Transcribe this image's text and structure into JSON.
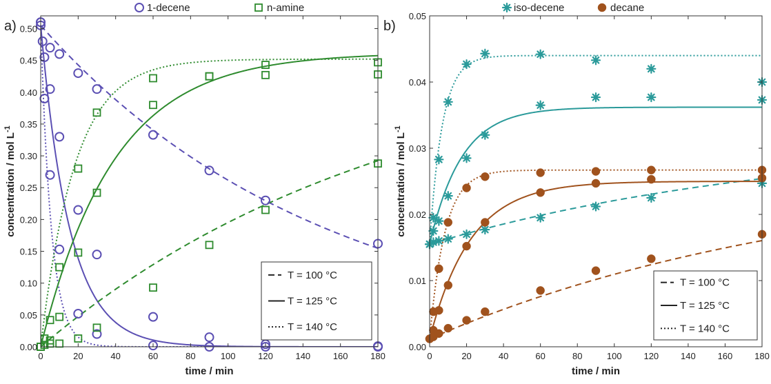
{
  "chart_data": [
    {
      "panel_label": "a)",
      "type": "scatter+line",
      "xlabel": "time / min",
      "ylabel": "concentration / mol L",
      "ylabel_sup": "-1",
      "xlim": [
        0,
        180
      ],
      "ylim": [
        0,
        0.52
      ],
      "xticks": [
        0,
        20,
        40,
        60,
        80,
        100,
        120,
        140,
        160,
        180
      ],
      "xtick_labels": [
        "0",
        "20",
        "40",
        "60",
        "80",
        "100",
        "120",
        "140",
        "160",
        "180"
      ],
      "yticks": [
        0,
        0.05,
        0.1,
        0.15,
        0.2,
        0.25,
        0.3,
        0.35,
        0.4,
        0.45,
        0.5
      ],
      "ytick_labels": [
        "0.00",
        "0.05",
        "0.10",
        "0.15",
        "0.20",
        "0.25",
        "0.30",
        "0.35",
        "0.40",
        "0.45",
        "0.50"
      ],
      "grid": false,
      "legend_top": [
        {
          "label": "1-decene",
          "marker": "circle-open",
          "color": "#5b4fb3"
        },
        {
          "label": "n-amine",
          "marker": "square-open",
          "color": "#2e8b2e"
        }
      ],
      "legend_lines": [
        {
          "label": "T = 100 °C",
          "prefix": "- -",
          "style": "dashed"
        },
        {
          "label": "T = 125 °C",
          "prefix": "",
          "style": "solid"
        },
        {
          "label": "T = 140 °C",
          "prefix": "",
          "style": "dotted"
        }
      ],
      "legend_lines_position": "bottom-right",
      "series": [
        {
          "name": "1-decene",
          "temperature": "T = 100 °C",
          "marker": "circle-open",
          "color": "#5b4fb3",
          "x": [
            0,
            5,
            10,
            20,
            30,
            60,
            90,
            120,
            180
          ],
          "y": [
            0.51,
            0.47,
            0.46,
            0.43,
            0.405,
            0.333,
            0.277,
            0.23,
            0.162
          ]
        },
        {
          "name": "1-decene",
          "temperature": "T = 125 °C",
          "marker": "circle-open",
          "color": "#5b4fb3",
          "x": [
            0,
            2,
            5,
            10,
            20,
            30,
            60,
            90,
            120,
            180
          ],
          "y": [
            0.505,
            0.455,
            0.405,
            0.33,
            0.215,
            0.145,
            0.047,
            0.015,
            0.004,
            0.001
          ]
        },
        {
          "name": "1-decene",
          "temperature": "T = 140 °C",
          "marker": "circle-open",
          "color": "#5b4fb3",
          "x": [
            0,
            1,
            2,
            5,
            10,
            20,
            30,
            60,
            90,
            120,
            180
          ],
          "y": [
            0.51,
            0.48,
            0.39,
            0.27,
            0.153,
            0.052,
            0.02,
            0.002,
            0.0,
            0.0,
            0.0
          ]
        },
        {
          "name": "n-amine",
          "temperature": "T = 100 °C",
          "marker": "square-open",
          "color": "#2e8b2e",
          "x": [
            0,
            5,
            10,
            20,
            30,
            60,
            90,
            120,
            180
          ],
          "y": [
            0.0,
            0.005,
            0.005,
            0.013,
            0.03,
            0.093,
            0.16,
            0.215,
            0.288
          ]
        },
        {
          "name": "n-amine",
          "temperature": "T = 125 °C",
          "marker": "square-open",
          "color": "#2e8b2e",
          "x": [
            0,
            2,
            5,
            10,
            20,
            30,
            60,
            90,
            120,
            180
          ],
          "y": [
            0.0,
            0.003,
            0.01,
            0.047,
            0.148,
            0.242,
            0.38,
            0.425,
            0.443,
            0.447
          ]
        },
        {
          "name": "n-amine",
          "temperature": "T = 140 °C",
          "marker": "square-open",
          "color": "#2e8b2e",
          "x": [
            0,
            2,
            5,
            10,
            20,
            30,
            60,
            90,
            120,
            180
          ],
          "y": [
            0.0,
            0.013,
            0.042,
            0.125,
            0.28,
            0.368,
            0.422,
            0.425,
            0.427,
            0.428
          ]
        }
      ],
      "fit_curves": [
        {
          "name": "1-decene",
          "temperature": "T = 100 °C",
          "style": "dashed",
          "color": "#5b4fb3",
          "kind": "exp_decay",
          "c0": 0.505,
          "k": 0.00657
        },
        {
          "name": "1-decene",
          "temperature": "T = 125 °C",
          "style": "solid",
          "color": "#5b4fb3",
          "kind": "exp_decay",
          "c0": 0.505,
          "k": 0.0645
        },
        {
          "name": "1-decene",
          "temperature": "T = 140 °C",
          "style": "dotted",
          "color": "#5b4fb3",
          "kind": "exp_decay",
          "c0": 0.505,
          "k": 0.175
        },
        {
          "name": "n-amine",
          "temperature": "T = 100 °C",
          "style": "dashed",
          "color": "#2e8b2e",
          "kind": "exp_rise",
          "a": 0.48,
          "k": 0.00522
        },
        {
          "name": "n-amine",
          "temperature": "T = 125 °C",
          "style": "solid",
          "color": "#2e8b2e",
          "kind": "exp_rise",
          "a": 0.462,
          "k": 0.0257
        },
        {
          "name": "n-amine",
          "temperature": "T = 140 °C",
          "style": "dotted",
          "color": "#2e8b2e",
          "kind": "exp_rise",
          "a": 0.452,
          "k": 0.0548
        }
      ]
    },
    {
      "panel_label": "b)",
      "type": "scatter+line",
      "xlabel": "time / min",
      "ylabel": "concentration / mol L",
      "ylabel_sup": "-1",
      "xlim": [
        0,
        180
      ],
      "ylim": [
        0,
        0.05
      ],
      "xticks": [
        0,
        20,
        40,
        60,
        80,
        100,
        120,
        140,
        160,
        180
      ],
      "xtick_labels": [
        "0",
        "20",
        "40",
        "60",
        "80",
        "100",
        "120",
        "140",
        "160",
        "180"
      ],
      "yticks": [
        0,
        0.01,
        0.02,
        0.03,
        0.04,
        0.05
      ],
      "ytick_labels": [
        "0.00",
        "0.01",
        "0.02",
        "0.03",
        "0.04",
        "0.05"
      ],
      "grid": false,
      "legend_top": [
        {
          "label": "iso-decene",
          "marker": "asterisk",
          "color": "#2a9a9a"
        },
        {
          "label": "decane",
          "marker": "circle-filled",
          "color": "#a0521d"
        }
      ],
      "legend_lines": [
        {
          "label": "T = 100 °C",
          "prefix": "- -",
          "style": "dashed"
        },
        {
          "label": "T = 125 °C",
          "prefix": "",
          "style": "solid"
        },
        {
          "label": "T = 140 °C",
          "prefix": "",
          "style": "dotted"
        }
      ],
      "legend_lines_position": "bottom-right",
      "series": [
        {
          "name": "iso-decene",
          "temperature": "T = 100 °C",
          "marker": "asterisk",
          "color": "#2a9a9a",
          "x": [
            0,
            2,
            5,
            10,
            20,
            30,
            60,
            90,
            120,
            180
          ],
          "y": [
            0.0155,
            0.0158,
            0.016,
            0.0163,
            0.017,
            0.0177,
            0.0195,
            0.0212,
            0.0225,
            0.0247
          ]
        },
        {
          "name": "iso-decene",
          "temperature": "T = 125 °C",
          "marker": "asterisk",
          "color": "#2a9a9a",
          "x": [
            0,
            2,
            5,
            10,
            20,
            30,
            60,
            90,
            120,
            180
          ],
          "y": [
            0.0155,
            0.0195,
            0.019,
            0.0228,
            0.0285,
            0.032,
            0.0365,
            0.0377,
            0.0377,
            0.0373
          ]
        },
        {
          "name": "iso-decene",
          "temperature": "T = 140 °C",
          "marker": "asterisk",
          "color": "#2a9a9a",
          "x": [
            0,
            2,
            5,
            10,
            20,
            30,
            60,
            90,
            120,
            180
          ],
          "y": [
            0.0155,
            0.0175,
            0.0283,
            0.037,
            0.0427,
            0.0443,
            0.0442,
            0.0433,
            0.042,
            0.04
          ]
        },
        {
          "name": "decane",
          "temperature": "T = 100 °C",
          "marker": "circle-filled",
          "color": "#a0521d",
          "x": [
            0,
            2,
            5,
            10,
            20,
            30,
            60,
            90,
            120,
            180
          ],
          "y": [
            0.0012,
            0.0015,
            0.002,
            0.0028,
            0.004,
            0.0053,
            0.0085,
            0.0115,
            0.0133,
            0.017
          ]
        },
        {
          "name": "decane",
          "temperature": "T = 125 °C",
          "marker": "circle-filled",
          "color": "#a0521d",
          "x": [
            0,
            2,
            5,
            10,
            20,
            30,
            60,
            90,
            120,
            180
          ],
          "y": [
            0.0012,
            0.0025,
            0.0055,
            0.0093,
            0.0152,
            0.0188,
            0.0233,
            0.0247,
            0.0253,
            0.0255
          ]
        },
        {
          "name": "decane",
          "temperature": "T = 140 °C",
          "marker": "circle-filled",
          "color": "#a0521d",
          "x": [
            0,
            2,
            5,
            10,
            20,
            30,
            60,
            90,
            120,
            180
          ],
          "y": [
            0.0012,
            0.0053,
            0.0118,
            0.0188,
            0.024,
            0.0257,
            0.0263,
            0.0265,
            0.0267,
            0.0267
          ]
        }
      ],
      "fit_curves": [
        {
          "name": "iso-decene",
          "temperature": "T = 100 °C",
          "style": "dashed",
          "color": "#2a9a9a",
          "kind": "offset_rise",
          "y0": 0.0155,
          "a": 0.0165,
          "k": 0.0051
        },
        {
          "name": "iso-decene",
          "temperature": "T = 125 °C",
          "style": "solid",
          "color": "#2a9a9a",
          "kind": "offset_rise",
          "y0": 0.0155,
          "a": 0.0207,
          "k": 0.058
        },
        {
          "name": "iso-decene",
          "temperature": "T = 140 °C",
          "style": "dotted",
          "color": "#2a9a9a",
          "kind": "offset_rise",
          "y0": 0.0155,
          "a": 0.0285,
          "k": 0.145
        },
        {
          "name": "decane",
          "temperature": "T = 100 °C",
          "style": "dashed",
          "color": "#a0521d",
          "kind": "offset_rise",
          "y0": 0.0012,
          "a": 0.026,
          "k": 0.0047
        },
        {
          "name": "decane",
          "temperature": "T = 125 °C",
          "style": "solid",
          "color": "#a0521d",
          "kind": "offset_rise",
          "y0": 0.0012,
          "a": 0.0238,
          "k": 0.045
        },
        {
          "name": "decane",
          "temperature": "T = 140 °C",
          "style": "dotted",
          "color": "#a0521d",
          "kind": "offset_rise",
          "y0": 0.0012,
          "a": 0.0255,
          "k": 0.12
        }
      ]
    }
  ]
}
